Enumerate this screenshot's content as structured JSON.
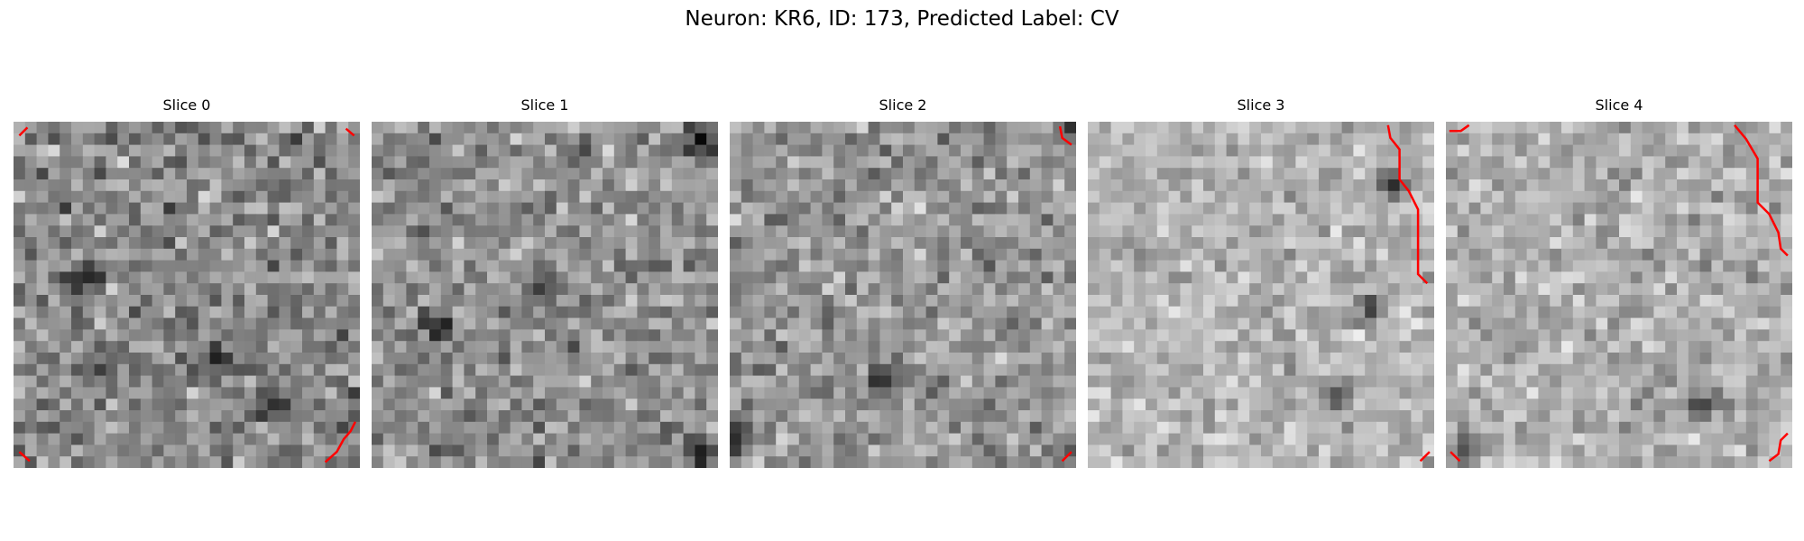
{
  "figure": {
    "suptitle": "Neuron: KR6, ID: 173, Predicted Label: CV",
    "grid_size": 30,
    "contour_color": "#ff0000",
    "panels": [
      {
        "title": "Slice 0",
        "base_gray": 138,
        "spread": 60,
        "dark_spots": [
          [
            6,
            13
          ],
          [
            22,
            24
          ],
          [
            17,
            20
          ],
          [
            29,
            29
          ]
        ],
        "contours": [
          [
            [
              0.5,
              1.2
            ],
            [
              1.2,
              0.5
            ]
          ],
          [
            [
              28.8,
              0.6
            ],
            [
              29.5,
              1.2
            ]
          ],
          [
            [
              27.0,
              29.5
            ],
            [
              28.0,
              28.6
            ],
            [
              28.6,
              27.5
            ],
            [
              29.2,
              26.8
            ],
            [
              29.6,
              26.0
            ]
          ],
          [
            [
              0.5,
              28.6
            ],
            [
              1.4,
              29.4
            ]
          ]
        ]
      },
      {
        "title": "Slice 1",
        "base_gray": 145,
        "spread": 55,
        "dark_spots": [
          [
            5,
            17
          ],
          [
            28,
            28
          ],
          [
            28,
            1
          ],
          [
            14,
            13
          ]
        ],
        "contours": []
      },
      {
        "title": "Slice 2",
        "base_gray": 150,
        "spread": 55,
        "dark_spots": [
          [
            29,
            0
          ],
          [
            13,
            22
          ],
          [
            0,
            27
          ]
        ],
        "contours": [
          [
            [
              28.6,
              0.4
            ],
            [
              28.8,
              1.4
            ],
            [
              29.6,
              2.0
            ]
          ],
          [
            [
              28.8,
              29.4
            ],
            [
              29.6,
              28.6
            ]
          ]
        ]
      },
      {
        "title": "Slice 3",
        "base_gray": 180,
        "spread": 45,
        "dark_spots": [
          [
            21,
            23
          ],
          [
            24,
            16
          ],
          [
            26,
            5
          ]
        ],
        "contours": [
          [
            [
              26.0,
              0.3
            ],
            [
              26.2,
              1.4
            ],
            [
              27.0,
              2.4
            ],
            [
              27.0,
              5.0
            ],
            [
              27.8,
              6.0
            ],
            [
              28.6,
              7.6
            ],
            [
              28.6,
              13.2
            ],
            [
              29.4,
              14.0
            ]
          ],
          [
            [
              28.8,
              29.4
            ],
            [
              29.6,
              28.6
            ]
          ]
        ]
      },
      {
        "title": "Slice 4",
        "base_gray": 175,
        "spread": 48,
        "dark_spots": [
          [
            1,
            28
          ],
          [
            22,
            24
          ]
        ],
        "contours": [
          [
            [
              0.3,
              0.8
            ],
            [
              1.3,
              0.8
            ],
            [
              2.0,
              0.3
            ]
          ],
          [
            [
              25.0,
              0.3
            ],
            [
              26.0,
              1.5
            ],
            [
              27.0,
              3.2
            ],
            [
              27.0,
              7.0
            ],
            [
              28.0,
              8.0
            ],
            [
              28.8,
              9.6
            ],
            [
              29.0,
              11.0
            ],
            [
              29.6,
              11.6
            ]
          ],
          [
            [
              28.0,
              29.4
            ],
            [
              28.8,
              28.8
            ],
            [
              29.0,
              27.6
            ],
            [
              29.6,
              27.0
            ]
          ],
          [
            [
              0.4,
              28.6
            ],
            [
              1.2,
              29.4
            ]
          ]
        ]
      }
    ]
  }
}
